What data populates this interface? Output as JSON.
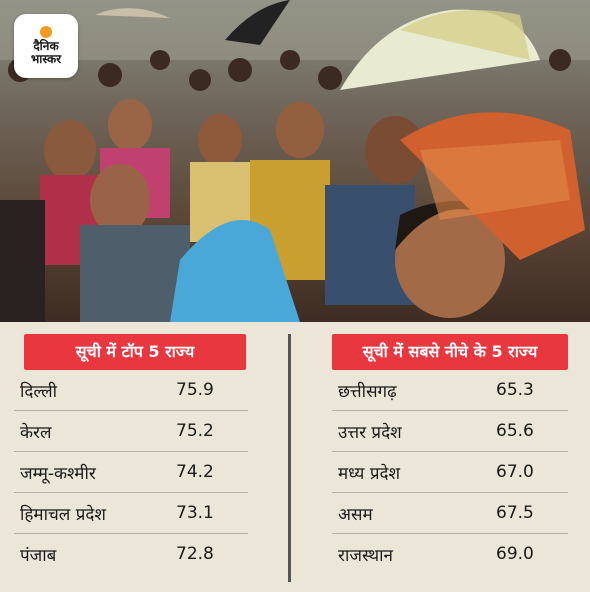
{
  "brand": {
    "line1": "दैनिक",
    "line2": "भास्कर",
    "accent": "#f39a1f"
  },
  "colors": {
    "heading_bg": "#e8373f",
    "panel_bg": "#ece6d8"
  },
  "left_table": {
    "title": "सूची में टॉप 5 राज्य",
    "rows": [
      {
        "state": "दिल्ली",
        "value": "75.9"
      },
      {
        "state": "केरल",
        "value": "75.2"
      },
      {
        "state": "जम्मू-कश्मीर",
        "value": "74.2"
      },
      {
        "state": "हिमाचल प्रदेश",
        "value": "73.1"
      },
      {
        "state": "पंजाब",
        "value": "72.8"
      }
    ]
  },
  "right_table": {
    "title": "सूची में सबसे नीचे के 5 राज्य",
    "rows": [
      {
        "state": "छत्तीसगढ़",
        "value": "65.3"
      },
      {
        "state": "उत्तर प्रदेश",
        "value": "65.6"
      },
      {
        "state": "मध्य प्रदेश",
        "value": "67.0"
      },
      {
        "state": "असम",
        "value": "67.5"
      },
      {
        "state": "राजस्थान",
        "value": "69.0"
      }
    ]
  }
}
